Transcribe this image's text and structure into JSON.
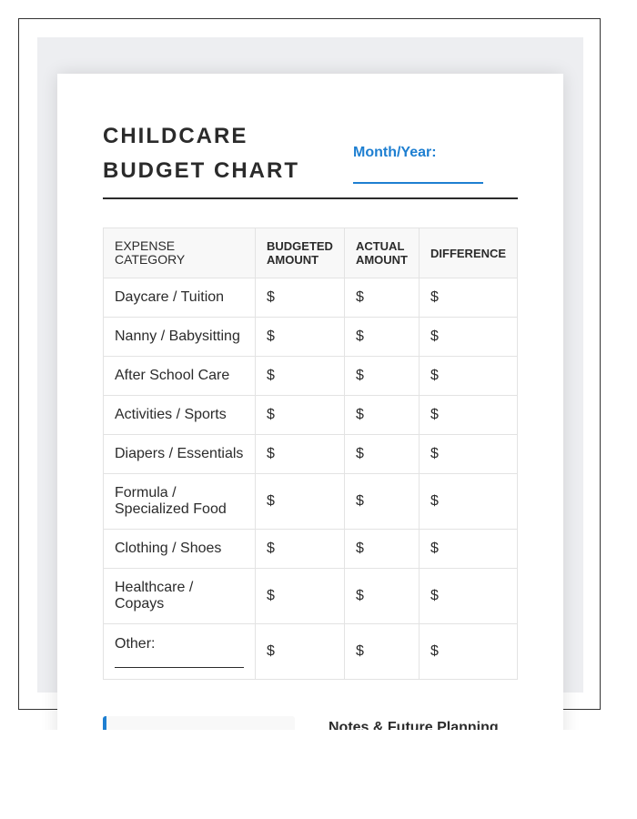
{
  "header": {
    "title": "CHILDCARE BUDGET CHART",
    "month_label": "Month/Year:"
  },
  "table": {
    "columns": [
      "EXPENSE CATEGORY",
      "BUDGETED AMOUNT",
      "ACTUAL AMOUNT",
      "DIFFERENCE"
    ],
    "currency": "$",
    "rows": [
      "Daycare / Tuition",
      "Nanny / Babysitting",
      "After School Care",
      "Activities / Sports",
      "Diapers / Essentials",
      "Formula / Specialized Food",
      "Clothing / Shoes",
      "Healthcare / Copays",
      "Other:"
    ]
  },
  "notes": {
    "title": "Notes & Future Planning"
  },
  "colors": {
    "accent": "#1e7fd1",
    "text": "#2b2b2b"
  }
}
